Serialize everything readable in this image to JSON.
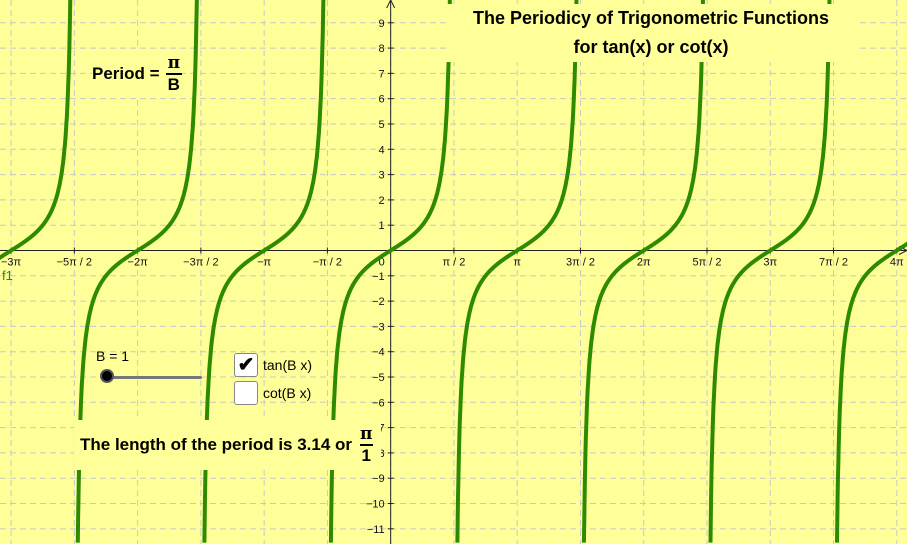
{
  "title": {
    "line1": "The Periodicy of Trigonometric Functions",
    "line2": "for tan(x) or cot(x)"
  },
  "period_formula": {
    "label": "Period =",
    "numerator": "π",
    "denominator": "B"
  },
  "length_text": {
    "text": "The length of the period is 3.14 or",
    "numerator": "π",
    "denominator": "1"
  },
  "slider": {
    "label": "B = 1",
    "value": 1,
    "min": 1,
    "max": 10
  },
  "checkboxes": [
    {
      "label": "tan(B x)",
      "checked": true,
      "check_glyph": "✔"
    },
    {
      "label": "cot(B x)",
      "checked": false,
      "check_glyph": ""
    }
  ],
  "function_label": "f1",
  "colors": {
    "background": "#ffff99",
    "curve": "#2e8b00",
    "grid": "#c8c8c8"
  },
  "chart_data": {
    "type": "line",
    "function": "tan(B x)",
    "B": 1,
    "xlim": [
      -9.7,
      12.82
    ],
    "ylim": [
      -11.6,
      9.9
    ],
    "grid": true,
    "x_tick_labels": [
      "−3π",
      "−5π / 2",
      "−2π",
      "−3π / 2",
      "−π",
      "−π / 2",
      "0",
      "π / 2",
      "π",
      "3π / 2",
      "2π",
      "5π / 2",
      "3π",
      "7π / 2",
      "4π"
    ],
    "y_tick_labels": [
      "9",
      "8",
      "7",
      "6",
      "5",
      "4",
      "3",
      "2",
      "1",
      "−1",
      "−2",
      "−3",
      "−4",
      "−5",
      "−6",
      "−7",
      "−8",
      "−9",
      "−10",
      "−11"
    ]
  }
}
